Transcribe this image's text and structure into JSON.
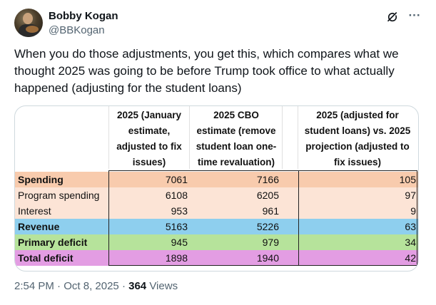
{
  "author": {
    "display_name": "Bobby Kogan",
    "handle": "@BBKogan"
  },
  "tweet": {
    "text": "When you do those adjustments, you get this, which compares what we thought 2025 was going to be before Trump took office to what actually happened (adjusting for the student loans)"
  },
  "icons": {
    "grok": "grok-icon",
    "more": "more-icon"
  },
  "table": {
    "col1_header": [
      "2025 (January",
      "estimate,",
      "adjusted to fix",
      "issues)"
    ],
    "col2_header": [
      "2025 CBO",
      "estimate (remove",
      "student loan one-",
      "time revaluation)"
    ],
    "col3_header": [
      "2025 (adjusted for",
      "student loans) vs. 2025",
      "projection (adjusted to",
      "fix issues)"
    ],
    "rows": [
      {
        "label": "Spending",
        "c1": "7061",
        "c2": "7166",
        "c3": "105",
        "color": "#f8cbad"
      },
      {
        "label": "Program spending",
        "c1": "6108",
        "c2": "6205",
        "c3": "97",
        "color": "#fce4d6"
      },
      {
        "label": "Interest",
        "c1": "953",
        "c2": "961",
        "c3": "9",
        "color": "#fce4d6"
      },
      {
        "label": "Revenue",
        "c1": "5163",
        "c2": "5226",
        "c3": "63",
        "color": "#8ecfee"
      },
      {
        "label": "Primary deficit",
        "c1": "945",
        "c2": "979",
        "c3": "34",
        "color": "#b6e39b"
      },
      {
        "label": "Total deficit",
        "c1": "1898",
        "c2": "1940",
        "c3": "42",
        "color": "#e39de3"
      }
    ]
  },
  "footer": {
    "time": "2:54 PM",
    "sep1": "·",
    "date": "Oct 8, 2025",
    "sep2": "·",
    "views_count": "364",
    "views_label": "Views"
  }
}
